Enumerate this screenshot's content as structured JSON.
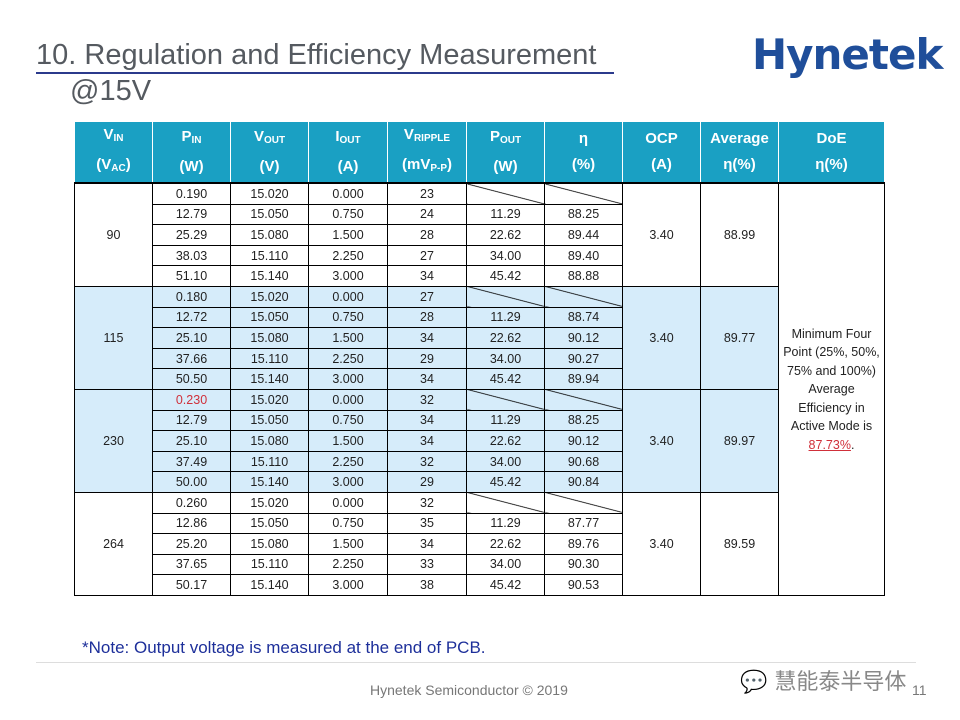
{
  "slide": {
    "title": "10. Regulation and Efficiency Measurement",
    "subtitle": "@15V",
    "logo_text": "Hynetek",
    "note": "*Note: Output voltage is measured at the end of PCB.",
    "footer": "Hynetek Semiconductor © 2019",
    "watermark": "慧能泰半导体",
    "page_number": "11"
  },
  "colors": {
    "header_bg": "#1aa0c3",
    "band_blue": "#d6ecfa",
    "highlight_red": "#d0303a",
    "title_rule": "#2b3a8c"
  },
  "table": {
    "headers": [
      {
        "l1": "V",
        "s1": "IN",
        "l2": "(V",
        "s2": "AC",
        "e2": ")"
      },
      {
        "l1": "P",
        "s1": "IN",
        "l2": "(W)"
      },
      {
        "l1": "V",
        "s1": "OUT",
        "l2": "(V)"
      },
      {
        "l1": "I",
        "s1": "OUT",
        "l2": "(A)"
      },
      {
        "l1": "V",
        "s1": "RIPPLE",
        "l2": "(mV",
        "s2": "P-P",
        "e2": ")"
      },
      {
        "l1": "P",
        "s1": "OUT",
        "l2": "(W)"
      },
      {
        "l1": "η",
        "l2": "(%)"
      },
      {
        "l1": "OCP",
        "l2": "(A)"
      },
      {
        "l1": "Average",
        "l2": "η(%)"
      },
      {
        "l1": "DoE",
        "l2": "η(%)"
      }
    ],
    "groups": [
      {
        "vin": "90",
        "ocp": "3.40",
        "avg": "88.99",
        "band": "white",
        "rows": [
          [
            "0.190",
            "15.020",
            "0.000",
            "23",
            "",
            ""
          ],
          [
            "12.79",
            "15.050",
            "0.750",
            "24",
            "11.29",
            "88.25"
          ],
          [
            "25.29",
            "15.080",
            "1.500",
            "28",
            "22.62",
            "89.44"
          ],
          [
            "38.03",
            "15.110",
            "2.250",
            "27",
            "34.00",
            "89.40"
          ],
          [
            "51.10",
            "15.140",
            "3.000",
            "34",
            "45.42",
            "88.88"
          ]
        ]
      },
      {
        "vin": "115",
        "ocp": "3.40",
        "avg": "89.77",
        "band": "blue",
        "rows": [
          [
            "0.180",
            "15.020",
            "0.000",
            "27",
            "",
            ""
          ],
          [
            "12.72",
            "15.050",
            "0.750",
            "28",
            "11.29",
            "88.74"
          ],
          [
            "25.10",
            "15.080",
            "1.500",
            "34",
            "22.62",
            "90.12"
          ],
          [
            "37.66",
            "15.110",
            "2.250",
            "29",
            "34.00",
            "90.27"
          ],
          [
            "50.50",
            "15.140",
            "3.000",
            "34",
            "45.42",
            "89.94"
          ]
        ]
      },
      {
        "vin": "230",
        "ocp": "3.40",
        "avg": "89.97",
        "band": "blue",
        "red_first_pin": true,
        "rows": [
          [
            "0.230",
            "15.020",
            "0.000",
            "32",
            "",
            ""
          ],
          [
            "12.79",
            "15.050",
            "0.750",
            "34",
            "11.29",
            "88.25"
          ],
          [
            "25.10",
            "15.080",
            "1.500",
            "34",
            "22.62",
            "90.12"
          ],
          [
            "37.49",
            "15.110",
            "2.250",
            "32",
            "34.00",
            "90.68"
          ],
          [
            "50.00",
            "15.140",
            "3.000",
            "29",
            "45.42",
            "90.84"
          ]
        ]
      },
      {
        "vin": "264",
        "ocp": "3.40",
        "avg": "89.59",
        "band": "white",
        "rows": [
          [
            "0.260",
            "15.020",
            "0.000",
            "32",
            "",
            ""
          ],
          [
            "12.86",
            "15.050",
            "0.750",
            "35",
            "11.29",
            "87.77"
          ],
          [
            "25.20",
            "15.080",
            "1.500",
            "34",
            "22.62",
            "89.76"
          ],
          [
            "37.65",
            "15.110",
            "2.250",
            "33",
            "34.00",
            "90.30"
          ],
          [
            "50.17",
            "15.140",
            "3.000",
            "38",
            "45.42",
            "90.53"
          ]
        ]
      }
    ],
    "doe_text": "Minimum Four Point (25%, 50%, 75% and 100%) Average Efficiency in Active Mode is",
    "doe_value": "87.73%",
    "doe_suffix": "."
  }
}
